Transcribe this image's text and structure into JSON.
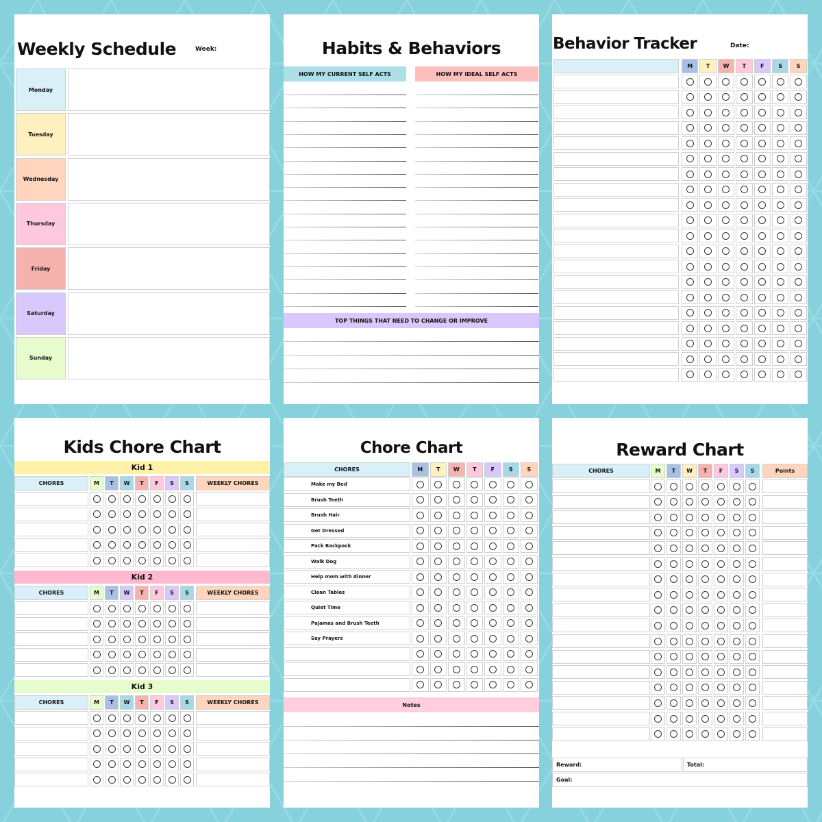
{
  "colors": {
    "background": "#86d1dc",
    "light_blue": "#d9f0f8",
    "yellow": "#fff1bf",
    "peach": "#ffd6bd",
    "pink": "#ffc8dd",
    "salmon": "#f6b2ad",
    "purple": "#d8c8fb",
    "green": "#e6fccc",
    "periwinkle": "#a8c0e4",
    "teal": "#a8d8e6"
  },
  "weekly": {
    "title": "Weekly Schedule",
    "week_label": "Week:",
    "days": [
      {
        "label": "Monday",
        "color": "#d9f0f8"
      },
      {
        "label": "Tuesday",
        "color": "#fff1bf"
      },
      {
        "label": "Wednesday",
        "color": "#ffd6bd"
      },
      {
        "label": "Thursday",
        "color": "#ffc8dd"
      },
      {
        "label": "Friday",
        "color": "#f6b2ad"
      },
      {
        "label": "Saturday",
        "color": "#d8c8fb"
      },
      {
        "label": "Sunday",
        "color": "#e6fccc"
      }
    ]
  },
  "habits": {
    "title": "Habits & Behaviors",
    "current_header": "HOW MY CURRENT SELF ACTS",
    "ideal_header": "HOW MY IDEAL SELF ACTS",
    "change_header": "TOP THINGS THAT NEED TO CHANGE OR IMPROVE"
  },
  "behavior": {
    "title": "Behavior Tracker",
    "date_label": "Date:",
    "days": [
      "M",
      "T",
      "W",
      "T",
      "F",
      "S",
      "S"
    ],
    "day_colors": [
      "#a8c0e4",
      "#fff1bf",
      "#f6b2ad",
      "#ffc8dd",
      "#d8c8fb",
      "#a8d8e6",
      "#ffd6bd"
    ],
    "rows": 20
  },
  "kids": {
    "title": "Kids Chore Chart",
    "chores_header": "CHORES",
    "weekly_header": "WEEKLY CHORES",
    "days": [
      "M",
      "T",
      "W",
      "T",
      "F",
      "S",
      "S"
    ],
    "sections": [
      {
        "label": "Kid 1",
        "color": "#fff1a8",
        "day_colors": [
          "#e6fccc",
          "#a8c0e4",
          "#a8d8e6",
          "#f6b2ad",
          "#ffc8dd",
          "#d8c8fb",
          "#a8d8e6"
        ]
      },
      {
        "label": "Kid 2",
        "color": "#ffb8d0",
        "day_colors": [
          "#e6fccc",
          "#a8c0e4",
          "#d8c8fb",
          "#f6b2ad",
          "#ffc8dd",
          "#d8c8fb",
          "#a8d8e6"
        ]
      },
      {
        "label": "Kid 3",
        "color": "#e6fccc",
        "day_colors": [
          "#e6fccc",
          "#a8c0e4",
          "#a8d8e6",
          "#f6b2ad",
          "#ffc8dd",
          "#d8c8fb",
          "#a8d8e6"
        ]
      }
    ],
    "rows_per_kid": 5
  },
  "chore": {
    "title": "Chore Chart",
    "chores_header": "CHORES",
    "days": [
      "M",
      "T",
      "W",
      "T",
      "F",
      "S",
      "S"
    ],
    "day_colors": [
      "#a8c0e4",
      "#fff1bf",
      "#f6b2ad",
      "#ffc8dd",
      "#d8c8fb",
      "#a8d8e6",
      "#ffd6bd"
    ],
    "chores": [
      "Make my Bed",
      "Brush Teeth",
      "Brush Hair",
      "Get Dressed",
      "Pack Backpack",
      "Walk Dog",
      "Help mom with dinner",
      "Clean Tables",
      "Quiet Time",
      "Pajamas and Brush Teeth",
      "Say Prayers",
      "",
      "",
      ""
    ],
    "notes_label": "Notes"
  },
  "reward": {
    "title": "Reward Chart",
    "chores_header": "CHORES",
    "points_header": "Points",
    "days": [
      "M",
      "T",
      "W",
      "T",
      "F",
      "S",
      "S"
    ],
    "day_colors": [
      "#e6fccc",
      "#a8c0e4",
      "#fff1bf",
      "#f6b2ad",
      "#ffc8dd",
      "#d8c8fb",
      "#a8d8e6"
    ],
    "rows": 17,
    "reward_label": "Reward:",
    "total_label": "Total:",
    "goal_label": "Goal:"
  }
}
